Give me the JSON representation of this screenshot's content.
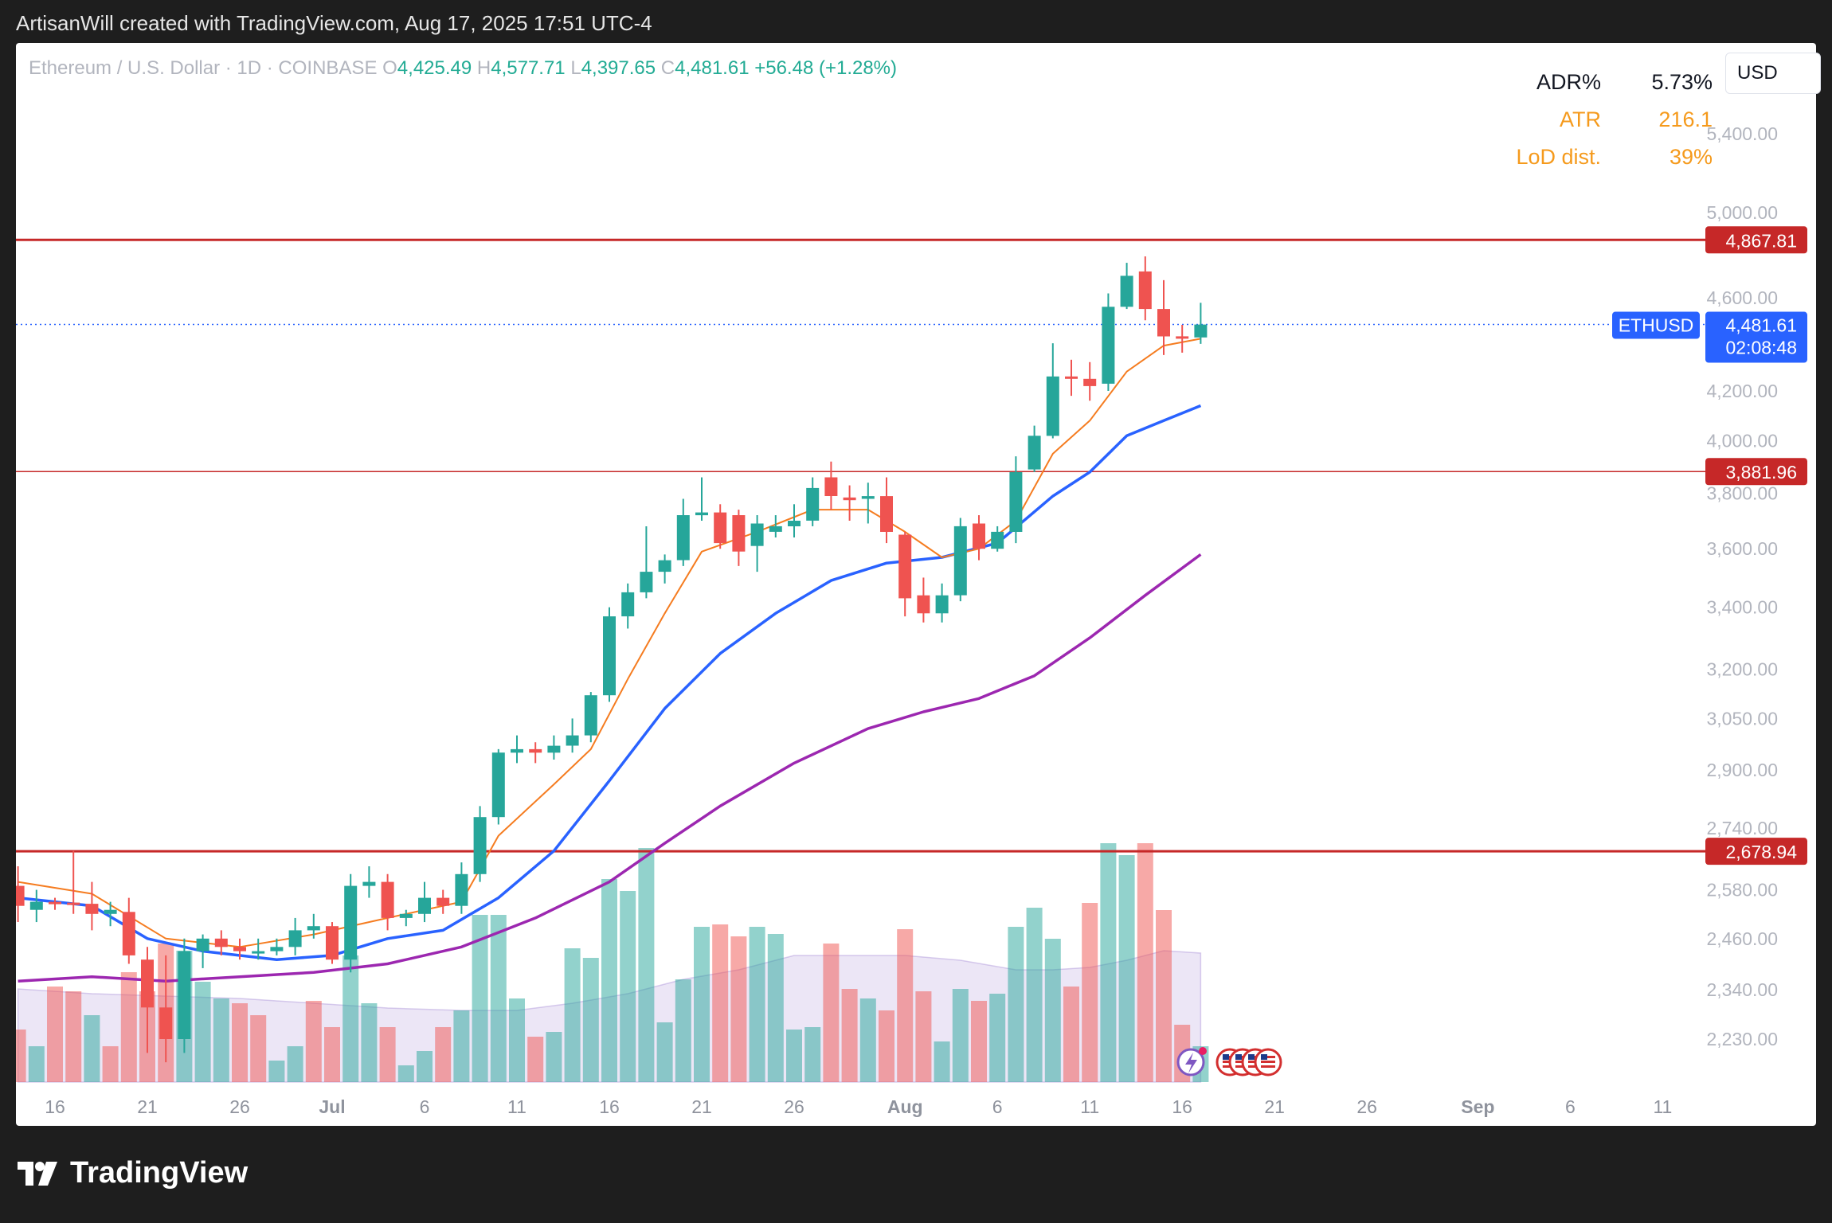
{
  "caption": "ArtisanWill created with TradingView.com, Aug 17, 2025 17:51 UTC-4",
  "legend": {
    "symbol": "Ethereum / U.S. Dollar · 1D · COINBASE",
    "o_label": "O",
    "o": "4,425.49",
    "h_label": "H",
    "h": "4,577.71",
    "l_label": "L",
    "l": "4,397.65",
    "c_label": "C",
    "c": "4,481.61",
    "change": "+56.48 (+1.28%)"
  },
  "stats": [
    {
      "label": "ADR%",
      "value": "5.73%",
      "color": "#131722"
    },
    {
      "label": "ATR",
      "value": "216.1",
      "color": "#f59a1c"
    },
    {
      "label": "LoD dist.",
      "value": "39%",
      "color": "#f59a1c"
    }
  ],
  "currency": "USD",
  "brand": "TradingView",
  "colors": {
    "up": "#26a69a",
    "down": "#ef5350",
    "ema_fast": "#f57c20",
    "ema_mid": "#2962ff",
    "ema_slow": "#9c27b0",
    "level_line": "#c62828",
    "price_tag": "#2962ff"
  },
  "chart_data": {
    "type": "candlestick",
    "symbol": "ETHUSD",
    "y_scale": "log",
    "ylim": [
      2130,
      5900
    ],
    "y_ticks": [
      "5,400.00",
      "5,000.00",
      "4,600.00",
      "4,200.00",
      "4,000.00",
      "3,800.00",
      "3,600.00",
      "3,400.00",
      "3,200.00",
      "3,050.00",
      "2,900.00",
      "2,740.00",
      "2,580.00",
      "2,460.00",
      "2,340.00",
      "2,230.00"
    ],
    "y_tick_values": [
      5400,
      5000,
      4600,
      4200,
      4000,
      3800,
      3600,
      3400,
      3200,
      3050,
      2900,
      2740,
      2580,
      2460,
      2340,
      2230
    ],
    "x_ticks": [
      {
        "label": "16",
        "day": 0
      },
      {
        "label": "21",
        "day": 5
      },
      {
        "label": "26",
        "day": 10
      },
      {
        "label": "Jul",
        "day": 15,
        "bold": true
      },
      {
        "label": "6",
        "day": 20
      },
      {
        "label": "11",
        "day": 25
      },
      {
        "label": "16",
        "day": 30
      },
      {
        "label": "21",
        "day": 35
      },
      {
        "label": "26",
        "day": 40
      },
      {
        "label": "Aug",
        "day": 46,
        "bold": true
      },
      {
        "label": "6",
        "day": 51
      },
      {
        "label": "11",
        "day": 56
      },
      {
        "label": "16",
        "day": 61
      },
      {
        "label": "21",
        "day": 66
      },
      {
        "label": "26",
        "day": 71
      },
      {
        "label": "Sep",
        "day": 77,
        "bold": true
      },
      {
        "label": "6",
        "day": 82
      },
      {
        "label": "11",
        "day": 87
      }
    ],
    "candles": [
      {
        "day": -2,
        "o": 2590,
        "h": 2640,
        "l": 2500,
        "c": 2540
      },
      {
        "day": -1,
        "o": 2530,
        "h": 2580,
        "l": 2500,
        "c": 2550
      },
      {
        "day": 0,
        "o": 2550,
        "h": 2560,
        "l": 2530,
        "c": 2545
      },
      {
        "day": 1,
        "o": 2548,
        "h": 2680,
        "l": 2520,
        "c": 2545
      },
      {
        "day": 2,
        "o": 2545,
        "h": 2600,
        "l": 2480,
        "c": 2520
      },
      {
        "day": 3,
        "o": 2520,
        "h": 2550,
        "l": 2490,
        "c": 2530
      },
      {
        "day": 4,
        "o": 2525,
        "h": 2560,
        "l": 2400,
        "c": 2420
      },
      {
        "day": 5,
        "o": 2410,
        "h": 2440,
        "l": 2200,
        "c": 2300
      },
      {
        "day": 6,
        "o": 2300,
        "h": 2420,
        "l": 2180,
        "c": 2230
      },
      {
        "day": 7,
        "o": 2230,
        "h": 2460,
        "l": 2200,
        "c": 2430
      },
      {
        "day": 8,
        "o": 2430,
        "h": 2470,
        "l": 2390,
        "c": 2460
      },
      {
        "day": 9,
        "o": 2460,
        "h": 2480,
        "l": 2420,
        "c": 2440
      },
      {
        "day": 10,
        "o": 2440,
        "h": 2460,
        "l": 2410,
        "c": 2430
      },
      {
        "day": 11,
        "o": 2430,
        "h": 2460,
        "l": 2410,
        "c": 2430
      },
      {
        "day": 12,
        "o": 2430,
        "h": 2460,
        "l": 2420,
        "c": 2440
      },
      {
        "day": 13,
        "o": 2440,
        "h": 2510,
        "l": 2420,
        "c": 2480
      },
      {
        "day": 14,
        "o": 2480,
        "h": 2520,
        "l": 2460,
        "c": 2490
      },
      {
        "day": 15,
        "o": 2490,
        "h": 2500,
        "l": 2400,
        "c": 2410
      },
      {
        "day": 16,
        "o": 2410,
        "h": 2620,
        "l": 2380,
        "c": 2590
      },
      {
        "day": 17,
        "o": 2590,
        "h": 2640,
        "l": 2560,
        "c": 2600
      },
      {
        "day": 18,
        "o": 2600,
        "h": 2620,
        "l": 2480,
        "c": 2510
      },
      {
        "day": 19,
        "o": 2510,
        "h": 2530,
        "l": 2490,
        "c": 2520
      },
      {
        "day": 20,
        "o": 2520,
        "h": 2600,
        "l": 2500,
        "c": 2560
      },
      {
        "day": 21,
        "o": 2560,
        "h": 2580,
        "l": 2520,
        "c": 2540
      },
      {
        "day": 22,
        "o": 2540,
        "h": 2650,
        "l": 2520,
        "c": 2620
      },
      {
        "day": 23,
        "o": 2620,
        "h": 2800,
        "l": 2600,
        "c": 2770
      },
      {
        "day": 24,
        "o": 2770,
        "h": 2960,
        "l": 2750,
        "c": 2950
      },
      {
        "day": 25,
        "o": 2950,
        "h": 3000,
        "l": 2920,
        "c": 2960
      },
      {
        "day": 26,
        "o": 2960,
        "h": 2980,
        "l": 2920,
        "c": 2950
      },
      {
        "day": 27,
        "o": 2950,
        "h": 3000,
        "l": 2930,
        "c": 2970
      },
      {
        "day": 28,
        "o": 2970,
        "h": 3050,
        "l": 2950,
        "c": 3000
      },
      {
        "day": 29,
        "o": 3000,
        "h": 3130,
        "l": 2980,
        "c": 3120
      },
      {
        "day": 30,
        "o": 3120,
        "h": 3400,
        "l": 3100,
        "c": 3370
      },
      {
        "day": 31,
        "o": 3370,
        "h": 3480,
        "l": 3330,
        "c": 3450
      },
      {
        "day": 32,
        "o": 3450,
        "h": 3680,
        "l": 3430,
        "c": 3520
      },
      {
        "day": 33,
        "o": 3520,
        "h": 3580,
        "l": 3480,
        "c": 3560
      },
      {
        "day": 34,
        "o": 3560,
        "h": 3780,
        "l": 3540,
        "c": 3720
      },
      {
        "day": 35,
        "o": 3720,
        "h": 3860,
        "l": 3700,
        "c": 3730
      },
      {
        "day": 36,
        "o": 3730,
        "h": 3760,
        "l": 3600,
        "c": 3620
      },
      {
        "day": 37,
        "o": 3720,
        "h": 3740,
        "l": 3540,
        "c": 3590
      },
      {
        "day": 38,
        "o": 3610,
        "h": 3720,
        "l": 3520,
        "c": 3690
      },
      {
        "day": 39,
        "o": 3660,
        "h": 3720,
        "l": 3640,
        "c": 3680
      },
      {
        "day": 40,
        "o": 3680,
        "h": 3760,
        "l": 3640,
        "c": 3700
      },
      {
        "day": 41,
        "o": 3700,
        "h": 3860,
        "l": 3680,
        "c": 3820
      },
      {
        "day": 42,
        "o": 3860,
        "h": 3920,
        "l": 3740,
        "c": 3790
      },
      {
        "day": 43,
        "o": 3785,
        "h": 3830,
        "l": 3700,
        "c": 3775
      },
      {
        "day": 44,
        "o": 3780,
        "h": 3840,
        "l": 3690,
        "c": 3790
      },
      {
        "day": 45,
        "o": 3790,
        "h": 3860,
        "l": 3620,
        "c": 3660
      },
      {
        "day": 46,
        "o": 3650,
        "h": 3660,
        "l": 3370,
        "c": 3430
      },
      {
        "day": 47,
        "o": 3440,
        "h": 3500,
        "l": 3350,
        "c": 3380
      },
      {
        "day": 48,
        "o": 3380,
        "h": 3480,
        "l": 3350,
        "c": 3440
      },
      {
        "day": 49,
        "o": 3440,
        "h": 3710,
        "l": 3420,
        "c": 3680
      },
      {
        "day": 50,
        "o": 3690,
        "h": 3720,
        "l": 3560,
        "c": 3600
      },
      {
        "day": 51,
        "o": 3600,
        "h": 3680,
        "l": 3590,
        "c": 3660
      },
      {
        "day": 52,
        "o": 3660,
        "h": 3940,
        "l": 3620,
        "c": 3880
      },
      {
        "day": 53,
        "o": 3890,
        "h": 4060,
        "l": 3880,
        "c": 4020
      },
      {
        "day": 54,
        "o": 4020,
        "h": 4400,
        "l": 4010,
        "c": 4260
      },
      {
        "day": 55,
        "o": 4260,
        "h": 4330,
        "l": 4180,
        "c": 4250
      },
      {
        "day": 56,
        "o": 4250,
        "h": 4320,
        "l": 4160,
        "c": 4220
      },
      {
        "day": 57,
        "o": 4230,
        "h": 4620,
        "l": 4200,
        "c": 4560
      },
      {
        "day": 58,
        "o": 4560,
        "h": 4760,
        "l": 4550,
        "c": 4700
      },
      {
        "day": 59,
        "o": 4720,
        "h": 4790,
        "l": 4500,
        "c": 4550
      },
      {
        "day": 60,
        "o": 4550,
        "h": 4680,
        "l": 4350,
        "c": 4430
      },
      {
        "day": 61,
        "o": 4430,
        "h": 4480,
        "l": 4360,
        "c": 4420
      },
      {
        "day": 62,
        "o": 4425.49,
        "h": 4577.71,
        "l": 4397.65,
        "c": 4481.61
      }
    ],
    "ema_fast": [
      [
        -2,
        2600
      ],
      [
        2,
        2570
      ],
      [
        6,
        2460
      ],
      [
        10,
        2440
      ],
      [
        14,
        2470
      ],
      [
        18,
        2510
      ],
      [
        22,
        2550
      ],
      [
        24,
        2720
      ],
      [
        27,
        2860
      ],
      [
        29,
        2960
      ],
      [
        31,
        3170
      ],
      [
        33,
        3380
      ],
      [
        35,
        3590
      ],
      [
        38,
        3660
      ],
      [
        41,
        3740
      ],
      [
        44,
        3740
      ],
      [
        46,
        3660
      ],
      [
        48,
        3570
      ],
      [
        50,
        3600
      ],
      [
        52,
        3700
      ],
      [
        54,
        3950
      ],
      [
        56,
        4080
      ],
      [
        58,
        4280
      ],
      [
        60,
        4390
      ],
      [
        62,
        4420
      ]
    ],
    "ema_mid": [
      [
        -2,
        2560
      ],
      [
        2,
        2540
      ],
      [
        5,
        2460
      ],
      [
        8,
        2430
      ],
      [
        12,
        2410
      ],
      [
        15,
        2420
      ],
      [
        18,
        2460
      ],
      [
        21,
        2480
      ],
      [
        24,
        2560
      ],
      [
        27,
        2680
      ],
      [
        30,
        2870
      ],
      [
        33,
        3080
      ],
      [
        36,
        3250
      ],
      [
        39,
        3380
      ],
      [
        42,
        3490
      ],
      [
        45,
        3550
      ],
      [
        48,
        3570
      ],
      [
        51,
        3620
      ],
      [
        54,
        3790
      ],
      [
        56,
        3880
      ],
      [
        58,
        4020
      ],
      [
        60,
        4080
      ],
      [
        62,
        4140
      ]
    ],
    "ema_slow": [
      [
        -2,
        2360
      ],
      [
        2,
        2370
      ],
      [
        6,
        2360
      ],
      [
        10,
        2370
      ],
      [
        14,
        2380
      ],
      [
        18,
        2400
      ],
      [
        22,
        2440
      ],
      [
        26,
        2510
      ],
      [
        30,
        2600
      ],
      [
        33,
        2700
      ],
      [
        36,
        2800
      ],
      [
        40,
        2920
      ],
      [
        44,
        3020
      ],
      [
        47,
        3070
      ],
      [
        50,
        3110
      ],
      [
        53,
        3180
      ],
      [
        56,
        3300
      ],
      [
        59,
        3440
      ],
      [
        62,
        3580
      ]
    ],
    "volume": [
      {
        "day": -2,
        "v": 0.22,
        "up": false
      },
      {
        "day": -1,
        "v": 0.15,
        "up": true
      },
      {
        "day": 0,
        "v": 0.4,
        "up": false
      },
      {
        "day": 1,
        "v": 0.38,
        "up": false
      },
      {
        "day": 2,
        "v": 0.28,
        "up": true
      },
      {
        "day": 3,
        "v": 0.15,
        "up": false
      },
      {
        "day": 4,
        "v": 0.46,
        "up": false
      },
      {
        "day": 5,
        "v": 0.38,
        "up": false
      },
      {
        "day": 6,
        "v": 0.58,
        "up": false
      },
      {
        "day": 7,
        "v": 0.55,
        "up": true
      },
      {
        "day": 8,
        "v": 0.42,
        "up": true
      },
      {
        "day": 9,
        "v": 0.35,
        "up": true
      },
      {
        "day": 10,
        "v": 0.33,
        "up": false
      },
      {
        "day": 11,
        "v": 0.28,
        "up": false
      },
      {
        "day": 12,
        "v": 0.09,
        "up": true
      },
      {
        "day": 13,
        "v": 0.15,
        "up": true
      },
      {
        "day": 14,
        "v": 0.34,
        "up": false
      },
      {
        "day": 15,
        "v": 0.23,
        "up": false
      },
      {
        "day": 16,
        "v": 0.53,
        "up": true
      },
      {
        "day": 17,
        "v": 0.33,
        "up": true
      },
      {
        "day": 18,
        "v": 0.23,
        "up": false
      },
      {
        "day": 19,
        "v": 0.07,
        "up": true
      },
      {
        "day": 20,
        "v": 0.13,
        "up": true
      },
      {
        "day": 21,
        "v": 0.23,
        "up": false
      },
      {
        "day": 22,
        "v": 0.3,
        "up": true
      },
      {
        "day": 23,
        "v": 0.7,
        "up": true
      },
      {
        "day": 24,
        "v": 0.7,
        "up": true
      },
      {
        "day": 25,
        "v": 0.35,
        "up": true
      },
      {
        "day": 26,
        "v": 0.19,
        "up": false
      },
      {
        "day": 27,
        "v": 0.21,
        "up": true
      },
      {
        "day": 28,
        "v": 0.56,
        "up": true
      },
      {
        "day": 29,
        "v": 0.52,
        "up": true
      },
      {
        "day": 30,
        "v": 0.85,
        "up": true
      },
      {
        "day": 31,
        "v": 0.8,
        "up": true
      },
      {
        "day": 32,
        "v": 0.98,
        "up": true
      },
      {
        "day": 33,
        "v": 0.25,
        "up": true
      },
      {
        "day": 34,
        "v": 0.43,
        "up": true
      },
      {
        "day": 35,
        "v": 0.65,
        "up": true
      },
      {
        "day": 36,
        "v": 0.66,
        "up": false
      },
      {
        "day": 37,
        "v": 0.61,
        "up": false
      },
      {
        "day": 38,
        "v": 0.65,
        "up": true
      },
      {
        "day": 39,
        "v": 0.62,
        "up": true
      },
      {
        "day": 40,
        "v": 0.22,
        "up": true
      },
      {
        "day": 41,
        "v": 0.23,
        "up": true
      },
      {
        "day": 42,
        "v": 0.58,
        "up": false
      },
      {
        "day": 43,
        "v": 0.39,
        "up": false
      },
      {
        "day": 44,
        "v": 0.35,
        "up": true
      },
      {
        "day": 45,
        "v": 0.3,
        "up": false
      },
      {
        "day": 46,
        "v": 0.64,
        "up": false
      },
      {
        "day": 47,
        "v": 0.38,
        "up": false
      },
      {
        "day": 48,
        "v": 0.17,
        "up": true
      },
      {
        "day": 49,
        "v": 0.39,
        "up": true
      },
      {
        "day": 50,
        "v": 0.34,
        "up": false
      },
      {
        "day": 51,
        "v": 0.37,
        "up": true
      },
      {
        "day": 52,
        "v": 0.65,
        "up": true
      },
      {
        "day": 53,
        "v": 0.73,
        "up": true
      },
      {
        "day": 54,
        "v": 0.6,
        "up": true
      },
      {
        "day": 55,
        "v": 0.4,
        "up": false
      },
      {
        "day": 56,
        "v": 0.75,
        "up": false
      },
      {
        "day": 57,
        "v": 1.0,
        "up": true
      },
      {
        "day": 58,
        "v": 0.95,
        "up": true
      },
      {
        "day": 59,
        "v": 1.0,
        "up": false
      },
      {
        "day": 60,
        "v": 0.72,
        "up": false
      },
      {
        "day": 61,
        "v": 0.24,
        "up": false
      },
      {
        "day": 62,
        "v": 0.15,
        "up": true
      }
    ],
    "volume_ma": [
      [
        -2,
        0.39
      ],
      [
        2,
        0.37
      ],
      [
        6,
        0.36
      ],
      [
        10,
        0.35
      ],
      [
        14,
        0.33
      ],
      [
        18,
        0.31
      ],
      [
        22,
        0.3
      ],
      [
        25,
        0.3
      ],
      [
        28,
        0.33
      ],
      [
        31,
        0.37
      ],
      [
        34,
        0.43
      ],
      [
        37,
        0.47
      ],
      [
        40,
        0.53
      ],
      [
        43,
        0.53
      ],
      [
        46,
        0.53
      ],
      [
        49,
        0.51
      ],
      [
        52,
        0.47
      ],
      [
        54,
        0.47
      ],
      [
        56,
        0.48
      ],
      [
        58,
        0.51
      ],
      [
        60,
        0.55
      ],
      [
        62,
        0.54
      ]
    ],
    "levels": [
      {
        "label": "4,867.81",
        "value": 4867.81,
        "width": 3
      },
      {
        "label": "3,881.96",
        "value": 3881.96,
        "width": 1.6
      },
      {
        "label": "2,678.94",
        "value": 2678.94,
        "width": 3
      }
    ],
    "last_price": {
      "symbol": "ETHUSD",
      "price": "4,481.61",
      "value": 4481.61,
      "countdown": "02:08:48"
    }
  }
}
